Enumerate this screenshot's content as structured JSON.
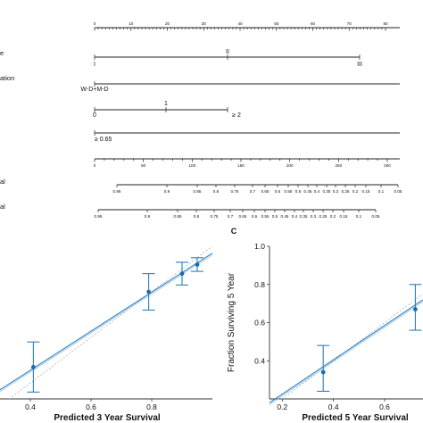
{
  "nomogram": {
    "points_ticks": [
      "0",
      "10",
      "20",
      "30",
      "40",
      "50",
      "60",
      "70",
      "80"
    ],
    "rows": [
      {
        "label": "e",
        "levels": [
          "I",
          "II",
          "III"
        ]
      },
      {
        "label": "ation",
        "levels": [
          "W-D+M-D",
          "",
          ""
        ]
      },
      {
        "label": "",
        "levels": [
          "0",
          "1",
          "≥ 2"
        ]
      },
      {
        "label": "",
        "levels": [
          "≥ 0.65"
        ]
      }
    ],
    "total_ticks": [
      "0",
      "50",
      "100",
      "150",
      "200",
      "250",
      "300"
    ],
    "surv3": {
      "label": "al",
      "ticks": [
        "0.95",
        "0.9",
        "0.85",
        "0.8",
        "0.75",
        "0.7",
        "0.65",
        "0.6",
        "0.55",
        "0.5",
        "0.45",
        "0.4",
        "0.35",
        "0.3",
        "0.25",
        "0.2",
        "0.15",
        "0.1",
        "0.05"
      ]
    },
    "surv5": {
      "label": "al",
      "ticks": [
        "0.95",
        "0.9",
        "0.85",
        "0.8",
        "0.75",
        "0.7",
        "0.65",
        "0.6",
        "0.55",
        "0.5",
        "0.45",
        "0.4",
        "0.35",
        "0.3",
        "0.25",
        "0.2",
        "0.15",
        "0.1",
        "0.05"
      ]
    }
  },
  "panel_c_letter": "C",
  "chart_data": [
    {
      "type": "scatter",
      "title": "",
      "xlabel": "Predicted 3 Year Survival",
      "ylabel": "",
      "xlim": [
        0.3,
        1.0
      ],
      "ylim": [
        0.33,
        1.0
      ],
      "x_ticks": [
        "0.4",
        "0.6",
        "0.8"
      ],
      "points": [
        {
          "x": 0.41,
          "y": 0.47,
          "lo": 0.36,
          "hi": 0.58
        },
        {
          "x": 0.79,
          "y": 0.8,
          "lo": 0.72,
          "hi": 0.88
        },
        {
          "x": 0.9,
          "y": 0.88,
          "lo": 0.83,
          "hi": 0.93
        },
        {
          "x": 0.95,
          "y": 0.92,
          "lo": 0.89,
          "hi": 0.95
        }
      ],
      "fit_line": [
        [
          0.3,
          0.37
        ],
        [
          1.0,
          0.97
        ]
      ],
      "ideal_line": true,
      "grid": false,
      "legend": "none"
    },
    {
      "type": "scatter",
      "title": "",
      "xlabel": "Predicted 5 Year Survival",
      "ylabel": "Fraction Surviving 5 Year",
      "xlim": [
        0.15,
        0.75
      ],
      "ylim": [
        0.2,
        1.0
      ],
      "x_ticks": [
        "0.2",
        "0.4",
        "0.6"
      ],
      "y_ticks": [
        "0.4",
        "0.6",
        "0.8",
        "1.0"
      ],
      "points": [
        {
          "x": 0.36,
          "y": 0.34,
          "lo": 0.24,
          "hi": 0.48
        },
        {
          "x": 0.72,
          "y": 0.67,
          "lo": 0.56,
          "hi": 0.8
        }
      ],
      "fit_line": [
        [
          0.15,
          0.18
        ],
        [
          0.75,
          0.72
        ]
      ],
      "ideal_line": true,
      "grid": false,
      "legend": "none"
    }
  ]
}
